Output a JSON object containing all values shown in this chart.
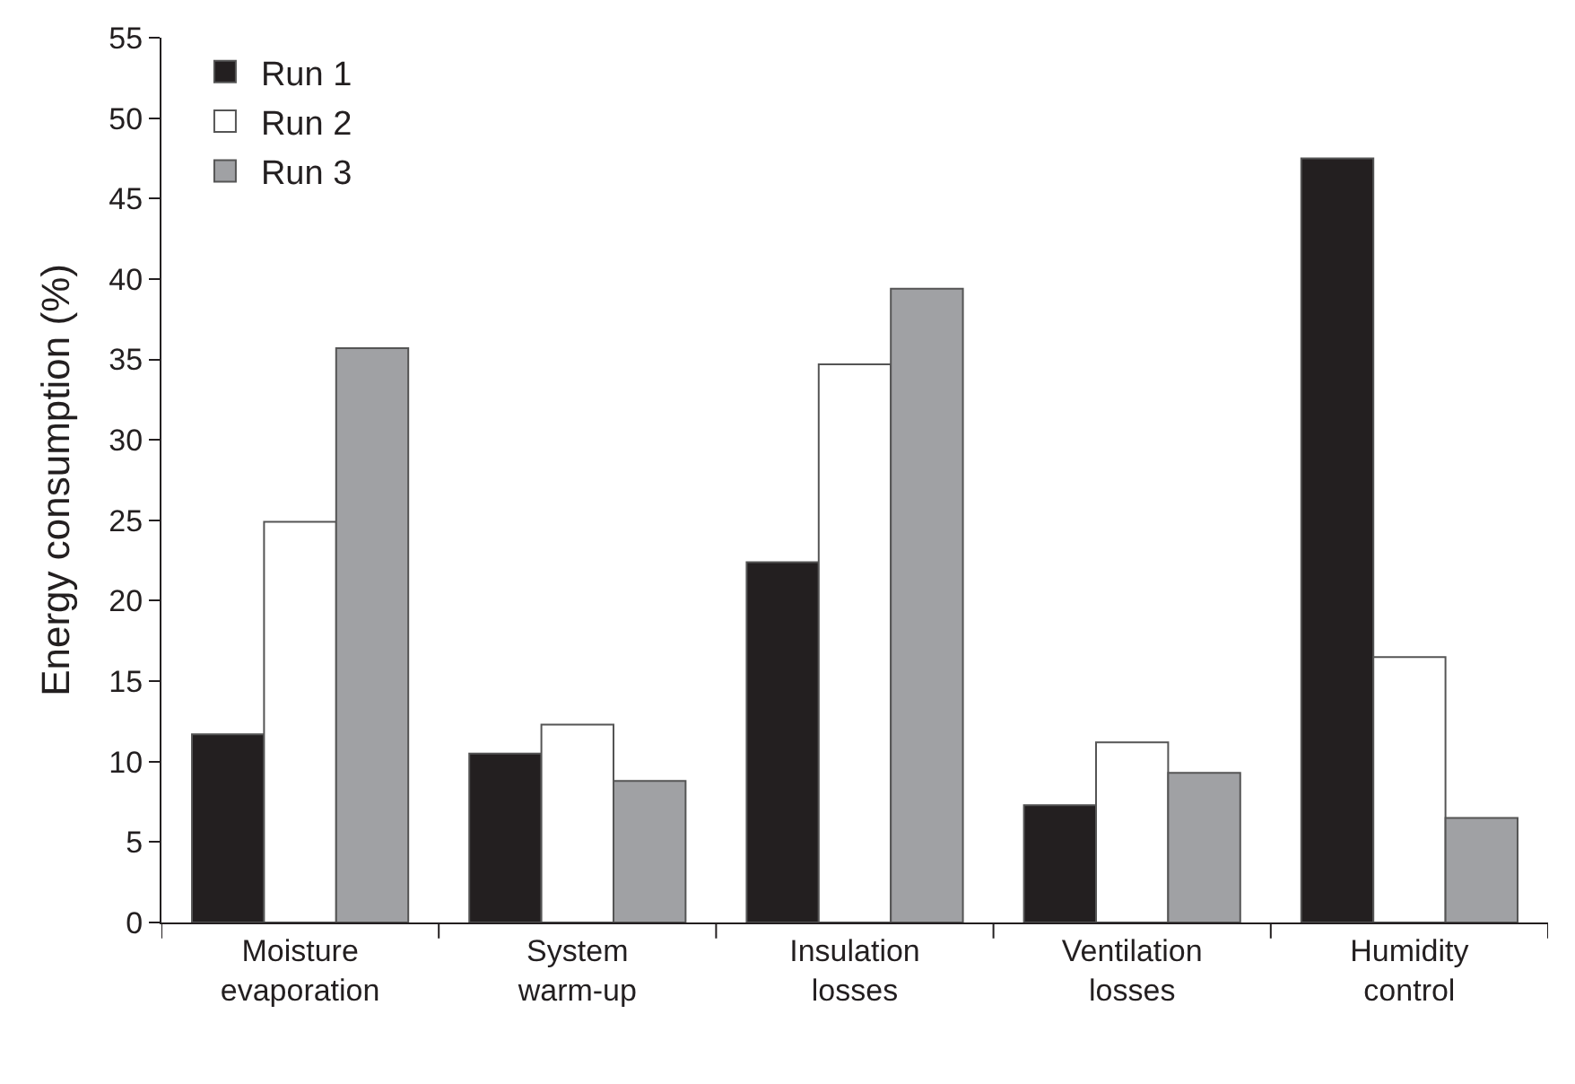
{
  "chart_data": {
    "type": "bar",
    "ylabel": "Energy consumption (%)",
    "categories": [
      "Moisture\nevaporation",
      "System\nwarm-up",
      "Insulation\nlosses",
      "Ventilation\nlosses",
      "Humidity\ncontrol"
    ],
    "series": [
      {
        "name": "Run 1",
        "color": "#231f20",
        "values": [
          11.7,
          10.5,
          22.4,
          7.3,
          47.5
        ]
      },
      {
        "name": "Run 2",
        "color": "#ffffff",
        "values": [
          24.9,
          12.3,
          34.7,
          11.2,
          16.5
        ]
      },
      {
        "name": "Run 3",
        "color": "#a0a1a4",
        "values": [
          35.7,
          8.8,
          39.4,
          9.3,
          6.5
        ]
      }
    ],
    "ylim": [
      0,
      55
    ],
    "yticks": [
      0,
      5,
      10,
      15,
      20,
      25,
      30,
      35,
      40,
      45,
      50,
      55
    ],
    "legend": "top left"
  }
}
